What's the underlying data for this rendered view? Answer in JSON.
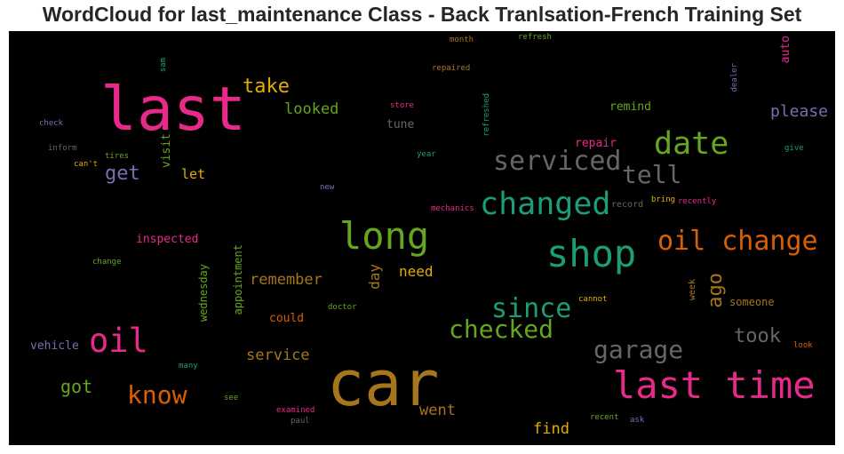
{
  "title": "WordCloud for last_maintenance Class - Back Tranlsation-French Training Set",
  "colors": {
    "magenta": "#e7298a",
    "green": "#66a61e",
    "teal": "#1b9e77",
    "orange": "#d95f02",
    "gold": "#e6ab02",
    "brown": "#a6761d",
    "gray": "#666666",
    "purple": "#7570b3",
    "background": "#000000"
  },
  "words": [
    {
      "text": "last",
      "color": "magenta"
    },
    {
      "text": "car",
      "color": "brown"
    },
    {
      "text": "shop",
      "color": "teal"
    },
    {
      "text": "long",
      "color": "green"
    },
    {
      "text": "last time",
      "color": "magenta"
    },
    {
      "text": "changed",
      "color": "teal"
    },
    {
      "text": "date",
      "color": "green"
    },
    {
      "text": "oil change",
      "color": "orange"
    },
    {
      "text": "serviced",
      "color": "gray"
    },
    {
      "text": "oil",
      "color": "magenta"
    },
    {
      "text": "since",
      "color": "teal"
    },
    {
      "text": "checked",
      "color": "green"
    },
    {
      "text": "tell",
      "color": "gray"
    },
    {
      "text": "know",
      "color": "orange"
    },
    {
      "text": "garage",
      "color": "gray"
    },
    {
      "text": "take",
      "color": "gold"
    },
    {
      "text": "took",
      "color": "gray"
    },
    {
      "text": "please",
      "color": "purple"
    },
    {
      "text": "get",
      "color": "purple"
    },
    {
      "text": "got",
      "color": "green"
    },
    {
      "text": "looked",
      "color": "green"
    },
    {
      "text": "remember",
      "color": "brown"
    },
    {
      "text": "service",
      "color": "brown"
    },
    {
      "text": "ago",
      "color": "brown"
    },
    {
      "text": "went",
      "color": "brown"
    },
    {
      "text": "find",
      "color": "gold"
    },
    {
      "text": "need",
      "color": "gold"
    },
    {
      "text": "let",
      "color": "gold"
    },
    {
      "text": "day",
      "color": "brown"
    },
    {
      "text": "inspected",
      "color": "magenta"
    },
    {
      "text": "could",
      "color": "orange"
    },
    {
      "text": "vehicle",
      "color": "purple"
    },
    {
      "text": "tune",
      "color": "gray"
    },
    {
      "text": "remind",
      "color": "green"
    },
    {
      "text": "repair",
      "color": "magenta"
    },
    {
      "text": "visit",
      "color": "green"
    },
    {
      "text": "someone",
      "color": "brown"
    },
    {
      "text": "appointment",
      "color": "green"
    },
    {
      "text": "wednesday",
      "color": "green"
    },
    {
      "text": "auto",
      "color": "magenta"
    },
    {
      "text": "week",
      "color": "brown"
    },
    {
      "text": "record",
      "color": "gray"
    },
    {
      "text": "bring",
      "color": "gold"
    },
    {
      "text": "recently",
      "color": "magenta"
    },
    {
      "text": "mechanics",
      "color": "magenta"
    },
    {
      "text": "month",
      "color": "brown"
    },
    {
      "text": "refresh",
      "color": "green"
    },
    {
      "text": "repaired",
      "color": "brown"
    },
    {
      "text": "store",
      "color": "magenta"
    },
    {
      "text": "refreshed",
      "color": "teal"
    },
    {
      "text": "year",
      "color": "teal"
    },
    {
      "text": "tires",
      "color": "green"
    },
    {
      "text": "inform",
      "color": "gray"
    },
    {
      "text": "check",
      "color": "purple"
    },
    {
      "text": "can't",
      "color": "gold"
    },
    {
      "text": "sam",
      "color": "teal"
    },
    {
      "text": "dealer",
      "color": "purple"
    },
    {
      "text": "give",
      "color": "teal"
    },
    {
      "text": "new",
      "color": "purple"
    },
    {
      "text": "change",
      "color": "green"
    },
    {
      "text": "doctor",
      "color": "green"
    },
    {
      "text": "cannot",
      "color": "gold"
    },
    {
      "text": "many",
      "color": "teal"
    },
    {
      "text": "see",
      "color": "green"
    },
    {
      "text": "examined",
      "color": "magenta"
    },
    {
      "text": "paul",
      "color": "gray"
    },
    {
      "text": "recent",
      "color": "green"
    },
    {
      "text": "ask",
      "color": "purple"
    },
    {
      "text": "look",
      "color": "orange"
    }
  ]
}
